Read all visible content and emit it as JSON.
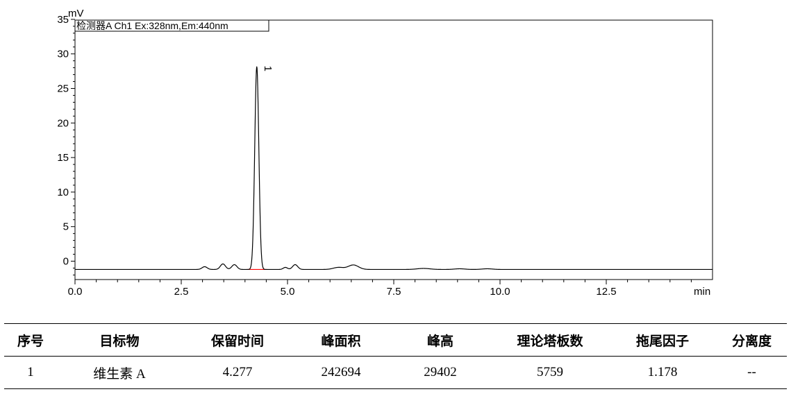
{
  "chart_data": {
    "type": "line",
    "ylabel": "mV",
    "xlabel": "min",
    "legend": "检测器A Ch1 Ex:328nm,Em:440nm",
    "legend_position": "top-left",
    "xlim": [
      0,
      15
    ],
    "ylim": [
      -2.5,
      35
    ],
    "x_ticks": [
      "0.0",
      "2.5",
      "5.0",
      "7.5",
      "10.0",
      "12.5"
    ],
    "y_ticks": [
      "0",
      "5",
      "10",
      "15",
      "20",
      "25",
      "30",
      "35"
    ],
    "baseline": -1.2,
    "peaks": [
      {
        "rt": 3.05,
        "height": 0.4,
        "width": 0.06
      },
      {
        "rt": 3.48,
        "height": 0.8,
        "width": 0.06
      },
      {
        "rt": 3.75,
        "height": 0.7,
        "width": 0.06
      },
      {
        "rt": 4.277,
        "height": 29.4,
        "width": 0.048
      },
      {
        "rt": 4.95,
        "height": 0.3,
        "width": 0.05
      },
      {
        "rt": 5.18,
        "height": 0.7,
        "width": 0.06
      },
      {
        "rt": 6.2,
        "height": 0.3,
        "width": 0.12
      },
      {
        "rt": 6.55,
        "height": 0.65,
        "width": 0.12
      },
      {
        "rt": 8.2,
        "height": 0.15,
        "width": 0.15
      },
      {
        "rt": 9.05,
        "height": 0.1,
        "width": 0.12
      },
      {
        "rt": 9.7,
        "height": 0.1,
        "width": 0.12
      }
    ],
    "peak_label": {
      "text": "1",
      "rt": 4.277
    },
    "colors": {
      "trace": "#000000",
      "integration_baseline": "#ff0000"
    }
  },
  "table": {
    "headers": [
      "序号",
      "目标物",
      "保留时间",
      "峰面积",
      "峰高",
      "理论塔板数",
      "拖尾因子",
      "分离度"
    ],
    "rows": [
      [
        "1",
        "维生素 A",
        "4.277",
        "242694",
        "29402",
        "5759",
        "1.178",
        "--"
      ]
    ]
  }
}
